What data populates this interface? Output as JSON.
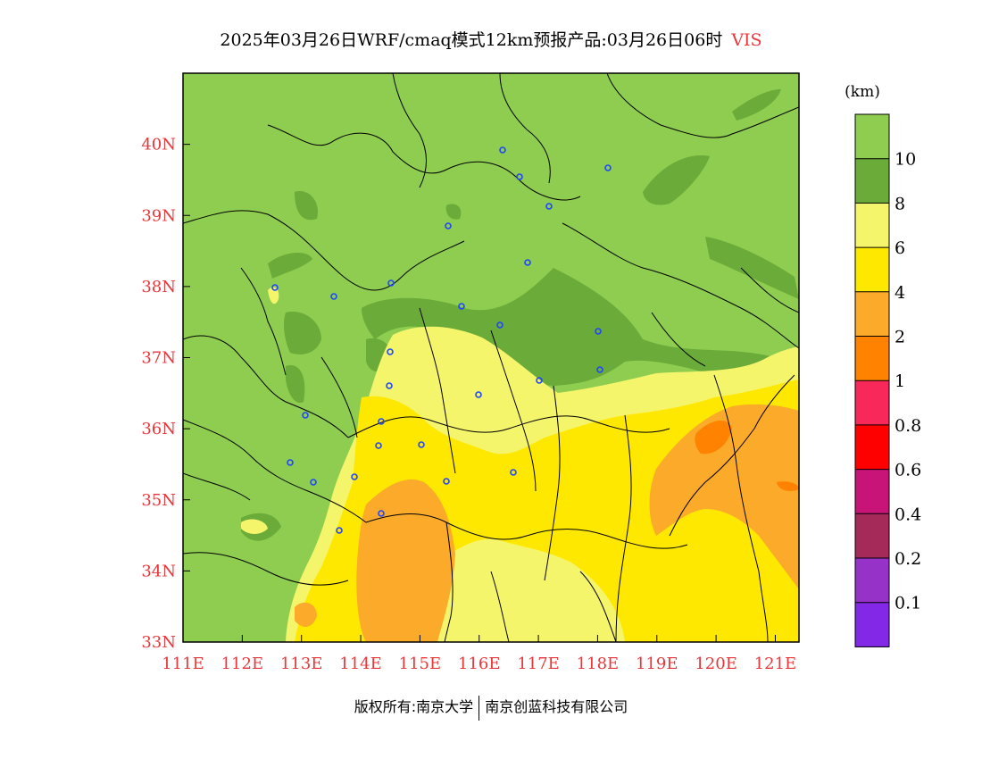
{
  "title": {
    "text": "2025年03月26日WRF/cmaq模式12km预报产品:03月26日06时",
    "variable": "VIS"
  },
  "unit": "(km)",
  "axes": {
    "lon_ticks": [
      "111E",
      "112E",
      "113E",
      "114E",
      "115E",
      "116E",
      "117E",
      "118E",
      "119E",
      "120E",
      "121E"
    ],
    "lat_ticks": [
      "33N",
      "34N",
      "35N",
      "36N",
      "37N",
      "38N",
      "39N",
      "40N"
    ],
    "lon_range": [
      111,
      121.4
    ],
    "lat_range": [
      33,
      41
    ]
  },
  "colorbar": {
    "levels": [
      "10",
      "8",
      "6",
      "4",
      "2",
      "1",
      "0.8",
      "0.6",
      "0.4",
      "0.2",
      "0.1"
    ],
    "colors": [
      "#8fcd50",
      "#6aab3a",
      "#f5f56b",
      "#ffe800",
      "#fbaa2a",
      "#ff8200",
      "#f8285a",
      "#ff0000",
      "#c81478",
      "#a52a5a",
      "#9632c8",
      "#8228e6"
    ],
    "label_color": "#e8373b"
  },
  "city_marker_color": "#1e46ff",
  "footer": {
    "left": "版权所有:南京大学",
    "right": "南京创蓝科技有限公司"
  }
}
